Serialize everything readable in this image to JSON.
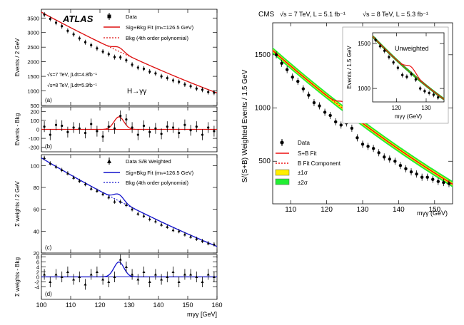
{
  "chart_data": [
    {
      "id": "atlas",
      "type": "scatter",
      "experiment": "ATLAS",
      "channel": "H→γγ",
      "conditions": [
        "√s=7 TeV, ∫Ldt=4.8fb⁻¹",
        "√s=8 TeV, ∫Ldt=5.9fb⁻¹"
      ],
      "x": [
        100,
        102,
        104,
        106,
        108,
        110,
        112,
        114,
        116,
        118,
        120,
        122,
        124,
        126,
        128,
        130,
        132,
        134,
        136,
        138,
        140,
        142,
        144,
        146,
        148,
        150,
        152,
        154,
        156,
        158
      ],
      "xlabel": "mγγ [GeV]",
      "xlim": [
        100,
        160
      ],
      "xticks": [
        100,
        110,
        120,
        130,
        140,
        150,
        160
      ],
      "panels": [
        {
          "tag": "(a)",
          "ylabel": "Events / 2 GeV",
          "ylim": [
            500,
            3800
          ],
          "yticks": [
            500,
            1000,
            1500,
            2000,
            2500,
            3000,
            3500
          ],
          "series": [
            {
              "name": "Data",
              "values": [
                3620,
                3470,
                3340,
                3220,
                3060,
                2940,
                2800,
                2670,
                2570,
                2460,
                2350,
                2260,
                2160,
                2150,
                2050,
                1900,
                1800,
                1760,
                1660,
                1600,
                1500,
                1440,
                1360,
                1310,
                1220,
                1160,
                1080,
                1040,
                960,
                940
              ]
            },
            {
              "name": "Sig+Bkg Fit (mₕ=126.5 GeV)",
              "model": "sig+bkg"
            },
            {
              "name": "Bkg (4th order polynomial)",
              "model": "bkg"
            }
          ],
          "bkg": {
            "at_100": 3700,
            "at_160": 930
          },
          "signal": {
            "mass": 126.5,
            "height": 140,
            "width": 1.7
          }
        },
        {
          "tag": "(b)",
          "ylabel": "Events - Bkg",
          "ylim": [
            -250,
            250
          ],
          "yticks": [
            -200,
            -100,
            0,
            100,
            200
          ],
          "values": [
            30,
            -60,
            50,
            40,
            -30,
            20,
            10,
            -40,
            60,
            -20,
            -80,
            30,
            10,
            150,
            110,
            20,
            -60,
            40,
            -30,
            10,
            -50,
            30,
            20,
            -40,
            50,
            -10,
            30,
            -60,
            20,
            -20
          ],
          "signal": {
            "mass": 126.5,
            "height": 140,
            "width": 1.7
          }
        },
        {
          "tag": "(c)",
          "ylabel": "Σ weights / 2 GeV",
          "ylim": [
            20,
            110
          ],
          "yticks": [
            20,
            40,
            60,
            80,
            100
          ],
          "series": [
            {
              "name": "Data S/B Weighted",
              "values": [
                107,
                102,
                99,
                96,
                93,
                89,
                86,
                83,
                79,
                77,
                74,
                71,
                67,
                67,
                64,
                60,
                56,
                54,
                51,
                49,
                46,
                44,
                41,
                40,
                37,
                35,
                33,
                31,
                29,
                28
              ]
            },
            {
              "name": "Sig+Bkg Fit (mₕ=126.5 GeV)",
              "model": "sig+bkg"
            },
            {
              "name": "Bkg (4th order polynomial)",
              "model": "bkg"
            }
          ],
          "bkg": {
            "at_100": 107,
            "at_160": 26
          },
          "signal": {
            "mass": 126.5,
            "height": 6,
            "width": 1.7
          }
        },
        {
          "tag": "(d)",
          "ylabel": "Σ weights - Bkg",
          "ylim": [
            -9,
            9
          ],
          "yticks": [
            -4,
            -2,
            0,
            2,
            4,
            6,
            8
          ],
          "values": [
            1,
            -2,
            1,
            0,
            2,
            -1,
            0,
            -3,
            1,
            2,
            -1,
            -2,
            0,
            7,
            4,
            1,
            -1,
            2,
            -2,
            1,
            -1,
            0,
            2,
            -2,
            1,
            1,
            0,
            -2,
            1,
            0
          ],
          "signal": {
            "mass": 126.5,
            "height": 6,
            "width": 1.7
          }
        }
      ]
    },
    {
      "id": "cms",
      "type": "scatter",
      "title": "CMS",
      "energy_7": "√s = 7 TeV, L = 5.1 fb⁻¹",
      "energy_8": "√s = 8 TeV, L = 5.3 fb⁻¹",
      "xlabel": "mγγ (GeV)",
      "ylabel": "S/(S+B) Weighted Events / 1.5 GeV",
      "xlim": [
        105,
        155
      ],
      "ylim": [
        100,
        1800
      ],
      "xticks": [
        110,
        120,
        130,
        140,
        150
      ],
      "yticks": [
        500,
        1000,
        1500
      ],
      "x": [
        106,
        107.5,
        109,
        110.5,
        112,
        113.5,
        115,
        116.5,
        118,
        119.5,
        121,
        122.5,
        124,
        125.5,
        127,
        128.5,
        130,
        131.5,
        133,
        134.5,
        136,
        137.5,
        139,
        140.5,
        142,
        143.5,
        145,
        146.5,
        148,
        149.5,
        151,
        152.5,
        154
      ],
      "values": [
        1500,
        1420,
        1360,
        1290,
        1250,
        1180,
        1120,
        1050,
        1020,
        960,
        930,
        870,
        840,
        860,
        810,
        720,
        660,
        640,
        620,
        580,
        540,
        520,
        500,
        460,
        430,
        400,
        380,
        350,
        350,
        330,
        310,
        300,
        290
      ],
      "bkg": {
        "at_105": 1540,
        "at_155": 285
      },
      "signal": {
        "mass": 125,
        "height": 65,
        "width": 1.6
      },
      "legend": [
        "Data",
        "S+B Fit",
        "B Fit Component",
        "±1σ",
        "±2σ"
      ],
      "band_colors": {
        "one_sigma": "#ffee00",
        "two_sigma": "#22ee33"
      },
      "inset": {
        "title": "Unweighted",
        "ylabel": "Events / 1.5 GeV",
        "xlabel": "mγγ (GeV)",
        "xlim": [
          112,
          136
        ],
        "ylim": [
          850,
          1620
        ],
        "xticks": [
          120,
          130
        ],
        "yticks": [
          1000,
          1500
        ],
        "x": [
          113,
          114.5,
          116,
          117.5,
          119,
          120.5,
          122,
          123.5,
          125,
          126.5,
          128,
          129.5,
          131,
          132.5,
          134
        ],
        "values": [
          1540,
          1470,
          1420,
          1350,
          1290,
          1230,
          1150,
          1130,
          1160,
          1100,
          1000,
          970,
          950,
          930,
          900
        ],
        "bkg": {
          "at_112": 1580,
          "at_136": 880
        },
        "signal": {
          "mass": 125,
          "height": 70,
          "width": 1.6
        }
      }
    }
  ],
  "colors": {
    "atlas_fit_top": "#dd1111",
    "atlas_fit_bottom": "#1111cc",
    "cms_fit": "#ee1111",
    "markers": "#000000"
  }
}
